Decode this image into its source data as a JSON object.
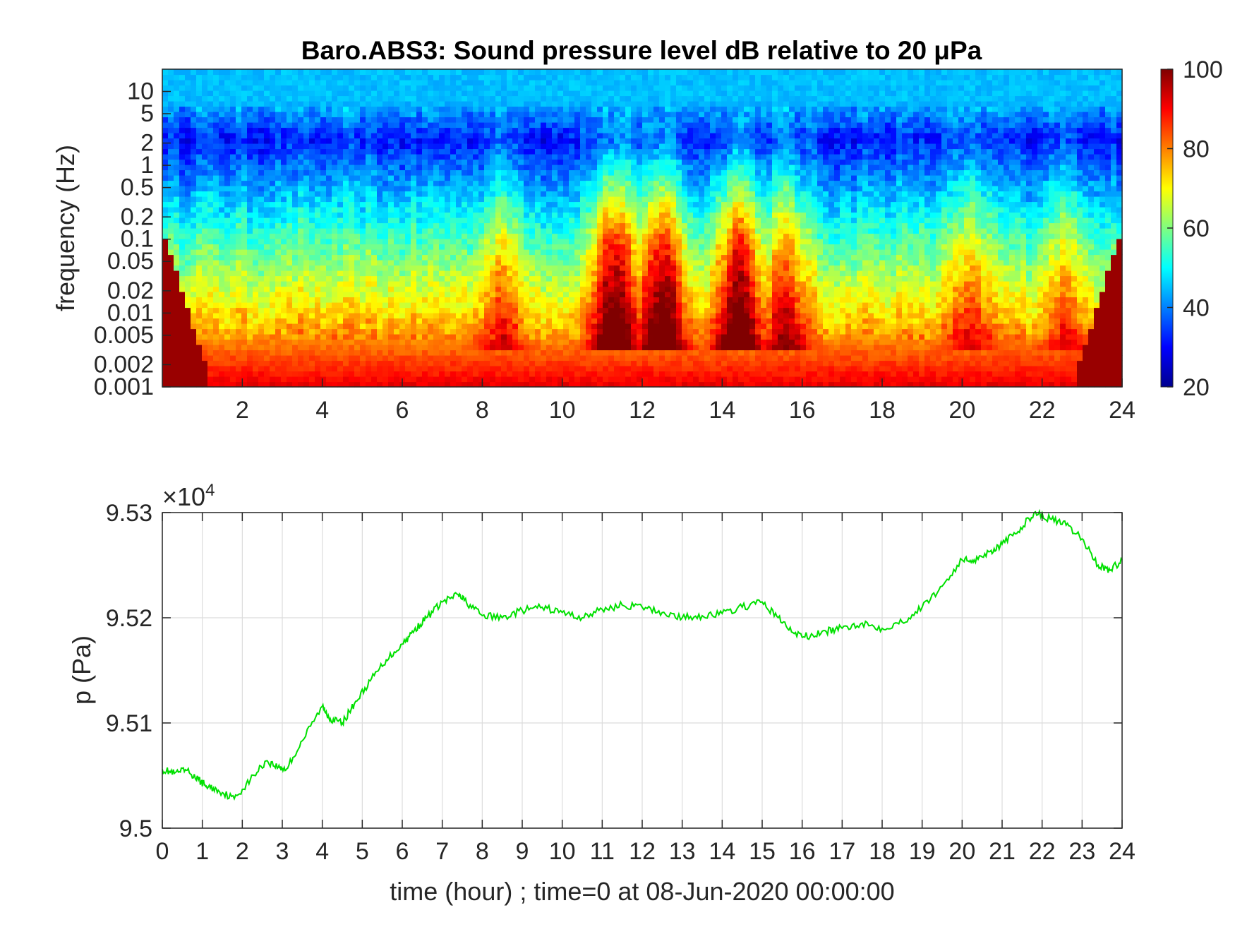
{
  "chart_data": [
    {
      "type": "heatmap",
      "title": "Baro.ABS3: Sound pressure level dB relative to 20 μPa",
      "ylabel": "frequency (Hz)",
      "xlabel": "",
      "xlim": [
        0,
        24
      ],
      "ylim": [
        0.001,
        20
      ],
      "y_scale": "log",
      "x_ticks": [
        "2",
        "4",
        "6",
        "8",
        "10",
        "12",
        "14",
        "16",
        "18",
        "20",
        "22",
        "24"
      ],
      "y_ticks": [
        "0.001",
        "0.002",
        "0.005",
        "0.01",
        "0.02",
        "0.05",
        "0.1",
        "0.2",
        "0.5",
        "1",
        "2",
        "5",
        "10"
      ],
      "colorbar": {
        "range": [
          20,
          100
        ],
        "ticks": [
          "20",
          "40",
          "60",
          "80",
          "100"
        ],
        "colormap": "jet"
      },
      "bursts": [
        {
          "t": 11.3,
          "amp": 1.0
        },
        {
          "t": 12.5,
          "amp": 1.0
        },
        {
          "t": 14.4,
          "amp": 1.0
        },
        {
          "t": 15.6,
          "amp": 0.6
        },
        {
          "t": 8.5,
          "amp": 0.4
        },
        {
          "t": 20.2,
          "amp": 0.35
        },
        {
          "t": 22.6,
          "amp": 0.35
        }
      ]
    },
    {
      "type": "line",
      "xlabel": "time (hour) ; time=0 at 08-Jun-2020 00:00:00",
      "ylabel": "p (Pa)",
      "exponent_label": "×10",
      "exponent_power": "4",
      "xlim": [
        0,
        24
      ],
      "ylim": [
        9.5,
        9.53
      ],
      "grid": true,
      "x_ticks": [
        "0",
        "1",
        "2",
        "3",
        "4",
        "5",
        "6",
        "7",
        "8",
        "9",
        "10",
        "11",
        "12",
        "13",
        "14",
        "15",
        "16",
        "17",
        "18",
        "19",
        "20",
        "21",
        "22",
        "23",
        "24"
      ],
      "y_ticks": [
        "9.5",
        "9.51",
        "9.52",
        "9.53"
      ],
      "series": [
        {
          "color": "#00e000",
          "x": [
            0,
            0.3,
            0.6,
            0.9,
            1.1,
            1.4,
            1.8,
            2.2,
            2.6,
            2.9,
            3.1,
            3.5,
            4.0,
            4.2,
            4.5,
            4.8,
            5.2,
            5.6,
            6.0,
            6.3,
            6.6,
            7.0,
            7.4,
            7.6,
            8.0,
            8.5,
            9.0,
            9.5,
            10.0,
            10.5,
            11.0,
            11.5,
            12.0,
            12.5,
            13.0,
            13.5,
            14.0,
            14.5,
            15.0,
            15.4,
            15.8,
            16.2,
            16.6,
            17.0,
            17.5,
            18.0,
            18.5,
            19.0,
            19.5,
            20.0,
            20.3,
            20.7,
            21.0,
            21.4,
            21.8,
            22.2,
            22.6,
            23.0,
            23.4,
            23.7,
            24.0
          ],
          "y": [
            9.5056,
            9.5052,
            9.5055,
            9.5046,
            9.504,
            9.5036,
            9.5028,
            9.5046,
            9.5064,
            9.5058,
            9.5056,
            9.5083,
            9.5116,
            9.5104,
            9.51,
            9.5118,
            9.514,
            9.516,
            9.5175,
            9.5188,
            9.52,
            9.5215,
            9.5222,
            9.5215,
            9.5202,
            9.52,
            9.5207,
            9.521,
            9.5205,
            9.52,
            9.5208,
            9.5212,
            9.521,
            9.5205,
            9.52,
            9.5202,
            9.5204,
            9.521,
            9.5215,
            9.52,
            9.5185,
            9.5182,
            9.5187,
            9.519,
            9.5195,
            9.519,
            9.5196,
            9.521,
            9.523,
            9.5255,
            9.5255,
            9.5263,
            9.527,
            9.5282,
            9.53,
            9.5294,
            9.5288,
            9.5275,
            9.525,
            9.5245,
            9.5255
          ]
        }
      ]
    }
  ]
}
